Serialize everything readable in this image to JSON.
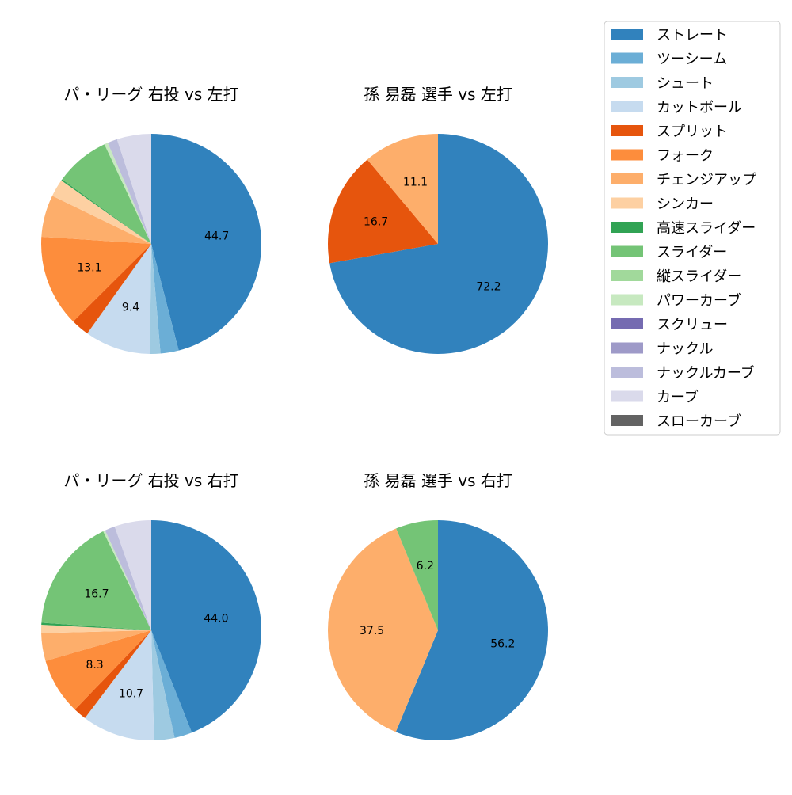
{
  "legend": {
    "placement": "right",
    "entries": [
      {
        "name": "ストレート",
        "color": "#3182bd"
      },
      {
        "name": "ツーシーム",
        "color": "#6baed6"
      },
      {
        "name": "シュート",
        "color": "#9ecae1"
      },
      {
        "name": "カットボール",
        "color": "#c6dbef"
      },
      {
        "name": "スプリット",
        "color": "#e6550d"
      },
      {
        "name": "フォーク",
        "color": "#fd8d3c"
      },
      {
        "name": "チェンジアップ",
        "color": "#fdae6b"
      },
      {
        "name": "シンカー",
        "color": "#fdd0a2"
      },
      {
        "name": "高速スライダー",
        "color": "#31a354"
      },
      {
        "name": "スライダー",
        "color": "#74c476"
      },
      {
        "name": "縦スライダー",
        "color": "#a1d99b"
      },
      {
        "name": "パワーカーブ",
        "color": "#c7e9c0"
      },
      {
        "name": "スクリュー",
        "color": "#756bb1"
      },
      {
        "name": "ナックル",
        "color": "#9e9ac8"
      },
      {
        "name": "ナックルカーブ",
        "color": "#bcbddc"
      },
      {
        "name": "カーブ",
        "color": "#dadaeb"
      },
      {
        "name": "スローカーブ",
        "color": "#636363"
      }
    ]
  },
  "chart_data": [
    {
      "type": "pie",
      "title": "パ・リーグ 右投 vs 左打",
      "slices": [
        {
          "name": "ストレート",
          "value": 44.7,
          "label": "44.7"
        },
        {
          "name": "ツーシーム",
          "value": 2.6,
          "label": ""
        },
        {
          "name": "シュート",
          "value": 1.5,
          "label": ""
        },
        {
          "name": "カットボール",
          "value": 9.4,
          "label": "9.4"
        },
        {
          "name": "スプリット",
          "value": 2.6,
          "label": ""
        },
        {
          "name": "フォーク",
          "value": 13.1,
          "label": "13.1"
        },
        {
          "name": "チェンジアップ",
          "value": 6.0,
          "label": ""
        },
        {
          "name": "シンカー",
          "value": 2.5,
          "label": ""
        },
        {
          "name": "高速スライダー",
          "value": 0.2,
          "label": ""
        },
        {
          "name": "スライダー",
          "value": 7.8,
          "label": ""
        },
        {
          "name": "パワーカーブ",
          "value": 0.5,
          "label": ""
        },
        {
          "name": "ナックルカーブ",
          "value": 1.4,
          "label": ""
        },
        {
          "name": "カーブ",
          "value": 4.9,
          "label": ""
        }
      ]
    },
    {
      "type": "pie",
      "title": "孫 易磊 選手 vs 左打",
      "slices": [
        {
          "name": "ストレート",
          "value": 72.2,
          "label": "72.2"
        },
        {
          "name": "スプリット",
          "value": 16.7,
          "label": "16.7"
        },
        {
          "name": "チェンジアップ",
          "value": 11.1,
          "label": "11.1"
        }
      ]
    },
    {
      "type": "pie",
      "title": "パ・リーグ 右投 vs 右打",
      "slices": [
        {
          "name": "ストレート",
          "value": 44.0,
          "label": "44.0"
        },
        {
          "name": "ツーシーム",
          "value": 2.6,
          "label": ""
        },
        {
          "name": "シュート",
          "value": 3.0,
          "label": ""
        },
        {
          "name": "カットボール",
          "value": 10.7,
          "label": "10.7"
        },
        {
          "name": "スプリット",
          "value": 1.9,
          "label": ""
        },
        {
          "name": "フォーク",
          "value": 8.3,
          "label": "8.3"
        },
        {
          "name": "チェンジアップ",
          "value": 4.1,
          "label": ""
        },
        {
          "name": "シンカー",
          "value": 1.2,
          "label": ""
        },
        {
          "name": "高速スライダー",
          "value": 0.3,
          "label": ""
        },
        {
          "name": "スライダー",
          "value": 16.7,
          "label": "16.7"
        },
        {
          "name": "パワーカーブ",
          "value": 0.3,
          "label": ""
        },
        {
          "name": "ナックルカーブ",
          "value": 1.5,
          "label": ""
        },
        {
          "name": "カーブ",
          "value": 5.4,
          "label": ""
        }
      ]
    },
    {
      "type": "pie",
      "title": "孫 易磊 選手 vs 右打",
      "slices": [
        {
          "name": "ストレート",
          "value": 56.2,
          "label": "56.2"
        },
        {
          "name": "チェンジアップ",
          "value": 37.5,
          "label": "37.5"
        },
        {
          "name": "スライダー",
          "value": 6.2,
          "label": "6.2"
        }
      ]
    }
  ]
}
